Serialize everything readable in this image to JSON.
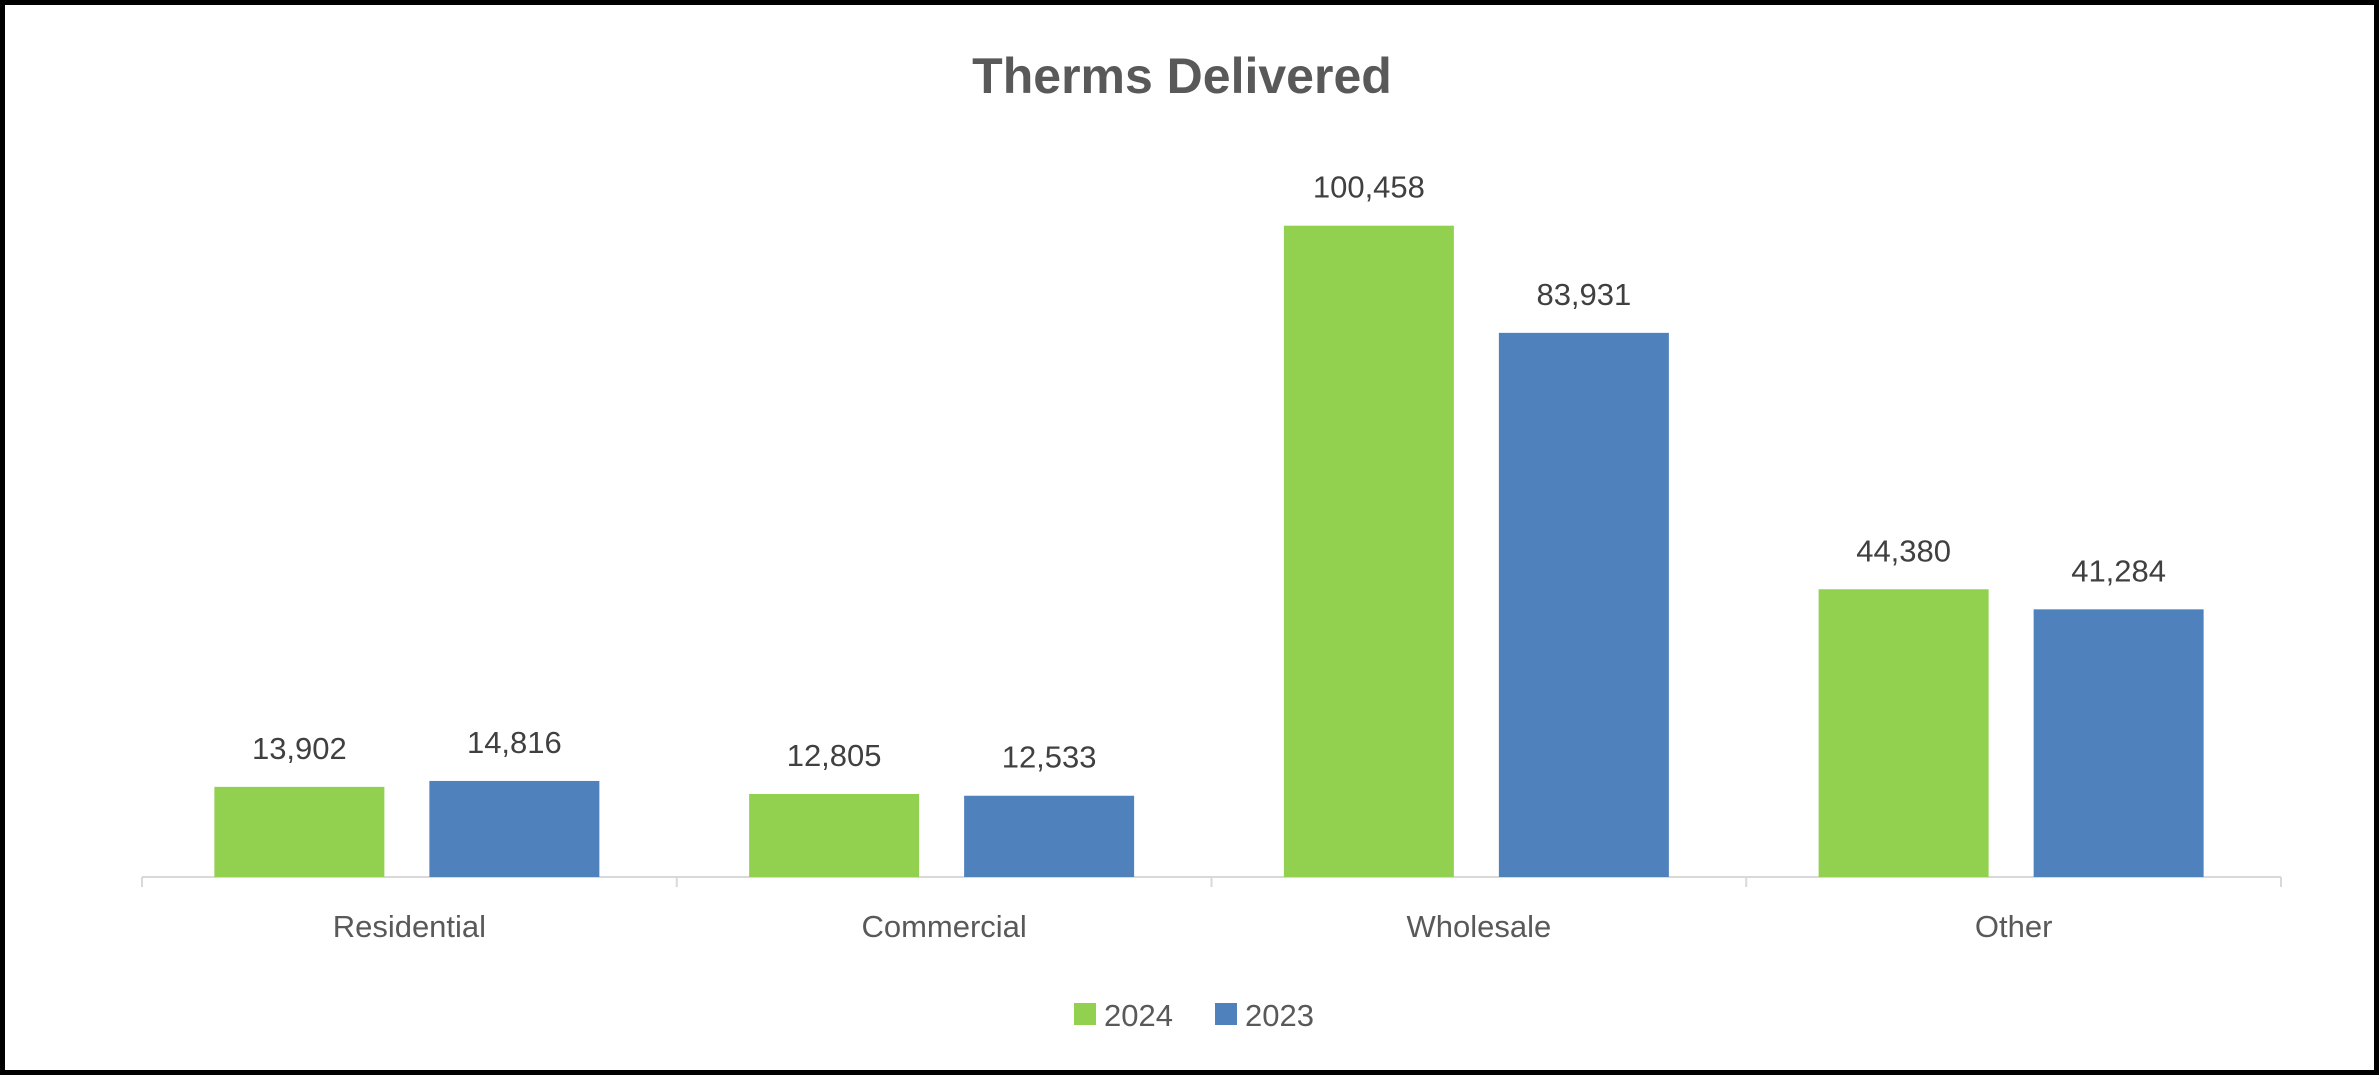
{
  "chart_data": {
    "type": "bar",
    "title": "Therms Delivered",
    "xlabel": "",
    "ylabel": "",
    "categories": [
      "Residential",
      "Commercial",
      "Wholesale",
      "Other"
    ],
    "series": [
      {
        "name": "2024",
        "color": "#92D050",
        "values": [
          13902,
          12805,
          100458,
          44380
        ],
        "labels": [
          "13,902",
          "12,805",
          "100,458",
          "44,380"
        ]
      },
      {
        "name": "2023",
        "color": "#4F81BD",
        "values": [
          14816,
          12533,
          83931,
          41284
        ],
        "labels": [
          "14,816",
          "12,533",
          "83,931",
          "41,284"
        ]
      }
    ],
    "ylim": [
      0,
      120000
    ],
    "grid": false,
    "legend_position": "bottom"
  }
}
